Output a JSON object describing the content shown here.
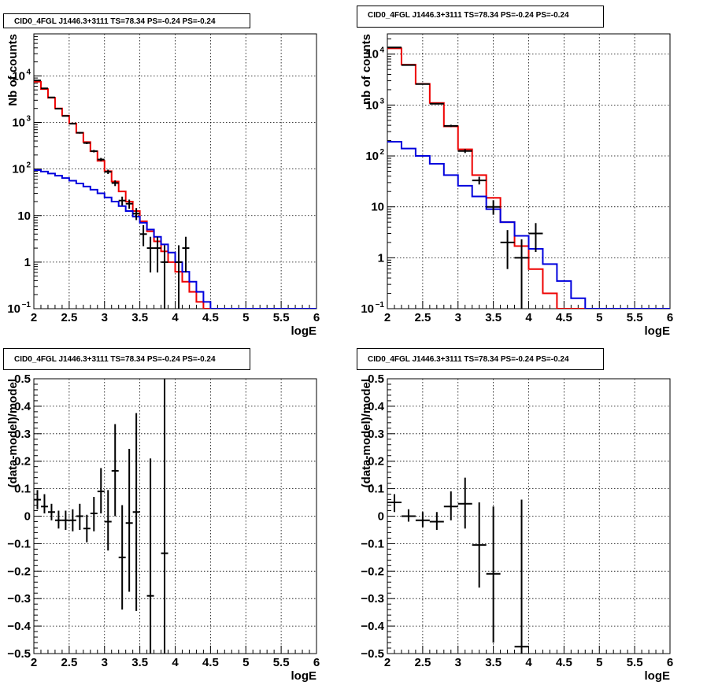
{
  "chart_data": [
    {
      "type": "line",
      "title": "CID0_4FGL J1446.3+3111 TS=78.34 PS=-0.24 PS=-0.24",
      "xlabel": "logE",
      "ylabel": "Nb of counts",
      "xlim": [
        2,
        6
      ],
      "ylim": [
        0.1,
        80000
      ],
      "yscale": "log",
      "grid": true,
      "xticks": [
        "2",
        "2.5",
        "3",
        "3.5",
        "4",
        "4.5",
        "5",
        "5.5",
        "6"
      ],
      "yticks": [
        {
          "v": 0.1,
          "label": "10",
          "sup": "−1"
        },
        {
          "v": 1,
          "label": "1",
          "sup": ""
        },
        {
          "v": 10,
          "label": "10",
          "sup": ""
        },
        {
          "v": 100,
          "label": "10",
          "sup": "2"
        },
        {
          "v": 1000,
          "label": "10",
          "sup": "3"
        },
        {
          "v": 10000,
          "label": "10",
          "sup": "4"
        }
      ],
      "bin_edges": [
        2.0,
        2.1,
        2.2,
        2.3,
        2.4,
        2.5,
        2.6,
        2.7,
        2.8,
        2.9,
        3.0,
        3.1,
        3.2,
        3.3,
        3.4,
        3.5,
        3.6,
        3.7,
        3.8,
        3.9,
        4.0,
        4.1,
        4.2,
        4.3,
        4.4,
        4.5,
        4.6,
        4.7,
        4.8,
        4.9,
        5.0,
        5.1,
        5.2,
        5.3,
        5.4,
        5.5,
        5.6,
        5.7,
        5.8,
        5.9,
        6.0
      ],
      "series": [
        {
          "color": "#ee0000",
          "step": true,
          "values": [
            7500,
            5200,
            3400,
            2000,
            1400,
            950,
            600,
            380,
            240,
            150,
            90,
            54,
            33,
            20,
            12.5,
            7.5,
            4.6,
            2.8,
            1.7,
            1.0,
            0.62,
            0.38,
            0.23,
            0.14,
            0.1,
            0.1,
            0.1,
            0.1,
            0.1,
            0.1,
            0.1,
            0.1,
            0.1,
            0.1,
            0.1,
            0.1,
            0.1,
            0.1,
            0.1,
            0.1
          ]
        },
        {
          "color": "#0000dd",
          "step": true,
          "values": [
            95,
            88,
            80,
            72,
            64,
            56,
            49,
            42,
            36,
            30,
            24.5,
            20,
            16,
            12.5,
            9.5,
            7.0,
            5.0,
            3.5,
            2.4,
            1.6,
            1.0,
            0.62,
            0.38,
            0.23,
            0.14,
            0.1,
            0.1,
            0.1,
            0.1,
            0.1,
            0.1,
            0.1,
            0.1,
            0.1,
            0.1,
            0.1,
            0.1,
            0.1,
            0.1,
            0.1
          ]
        }
      ],
      "points": [
        {
          "x": 2.05,
          "y": 8000,
          "xerr": 0.05,
          "lo": 7900,
          "hi": 8100
        },
        {
          "x": 2.15,
          "y": 5400,
          "xerr": 0.05,
          "lo": 5330,
          "hi": 5470
        },
        {
          "x": 2.25,
          "y": 3450,
          "xerr": 0.05,
          "lo": 3390,
          "hi": 3510
        },
        {
          "x": 2.35,
          "y": 1980,
          "xerr": 0.05,
          "lo": 1935,
          "hi": 2025
        },
        {
          "x": 2.45,
          "y": 1380,
          "xerr": 0.05,
          "lo": 1345,
          "hi": 1415
        },
        {
          "x": 2.55,
          "y": 940,
          "xerr": 0.05,
          "lo": 910,
          "hi": 970
        },
        {
          "x": 2.65,
          "y": 600,
          "xerr": 0.05,
          "lo": 576,
          "hi": 624
        },
        {
          "x": 2.75,
          "y": 362,
          "xerr": 0.05,
          "lo": 343,
          "hi": 381
        },
        {
          "x": 2.85,
          "y": 242,
          "xerr": 0.05,
          "lo": 227,
          "hi": 257
        },
        {
          "x": 2.95,
          "y": 160,
          "xerr": 0.05,
          "lo": 147,
          "hi": 173
        },
        {
          "x": 3.05,
          "y": 87,
          "xerr": 0.05,
          "lo": 78,
          "hi": 97
        },
        {
          "x": 3.15,
          "y": 50,
          "xerr": 0.05,
          "lo": 43,
          "hi": 57
        },
        {
          "x": 3.25,
          "y": 21,
          "xerr": 0.05,
          "lo": 16.5,
          "hi": 25.5
        },
        {
          "x": 3.35,
          "y": 18,
          "xerr": 0.05,
          "lo": 14,
          "hi": 22
        },
        {
          "x": 3.45,
          "y": 11,
          "xerr": 0.05,
          "lo": 8,
          "hi": 14.5
        },
        {
          "x": 3.55,
          "y": 4,
          "xerr": 0.05,
          "lo": 2.2,
          "hi": 6.2
        },
        {
          "x": 3.65,
          "y": 2,
          "xerr": 0.05,
          "lo": 0.6,
          "hi": 3.5
        },
        {
          "x": 3.75,
          "y": 2,
          "xerr": 0.05,
          "lo": 0.6,
          "hi": 3.5
        },
        {
          "x": 3.85,
          "y": 1,
          "xerr": 0.05,
          "lo": 0.1,
          "hi": 2.3
        },
        {
          "x": 4.05,
          "y": 1,
          "xerr": 0.05,
          "lo": 0.1,
          "hi": 2.3
        },
        {
          "x": 4.15,
          "y": 2,
          "xerr": 0.05,
          "lo": 0.6,
          "hi": 3.5
        }
      ]
    },
    {
      "type": "line",
      "title": "CID0_4FGL J1446.3+3111 TS=78.34 PS=-0.24 PS=-0.24",
      "xlabel": "logE",
      "ylabel": "nb of counts",
      "xlim": [
        2,
        6
      ],
      "ylim": [
        0.1,
        25000
      ],
      "yscale": "log",
      "grid": true,
      "xticks": [
        "2",
        "2.5",
        "3",
        "3.5",
        "4",
        "4.5",
        "5",
        "5.5",
        "6"
      ],
      "yticks": [
        {
          "v": 0.1,
          "label": "10",
          "sup": "−1"
        },
        {
          "v": 1,
          "label": "1",
          "sup": ""
        },
        {
          "v": 10,
          "label": "10",
          "sup": ""
        },
        {
          "v": 100,
          "label": "10",
          "sup": "2"
        },
        {
          "v": 1000,
          "label": "10",
          "sup": "3"
        },
        {
          "v": 10000,
          "label": "10",
          "sup": "4"
        }
      ],
      "bin_edges": [
        2.0,
        2.2,
        2.4,
        2.6,
        2.8,
        3.0,
        3.2,
        3.4,
        3.6,
        3.8,
        4.0,
        4.2,
        4.4,
        4.6,
        4.8,
        5.0,
        5.2,
        5.4,
        5.6,
        5.8,
        6.0
      ],
      "series": [
        {
          "color": "#ee0000",
          "step": true,
          "values": [
            13000,
            6200,
            2600,
            1100,
            380,
            135,
            42,
            15,
            5.0,
            1.7,
            0.6,
            0.2,
            0.1,
            0.1,
            0.1,
            0.1,
            0.1,
            0.1,
            0.1,
            0.1
          ]
        },
        {
          "color": "#0000dd",
          "step": true,
          "values": [
            190,
            140,
            100,
            70,
            42,
            26,
            16,
            9.0,
            5.0,
            2.7,
            1.5,
            0.75,
            0.35,
            0.16,
            0.1,
            0.1,
            0.1,
            0.1,
            0.1,
            0.1
          ]
        }
      ],
      "points": [
        {
          "x": 2.1,
          "y": 13500,
          "xerr": 0.1,
          "lo": 13380,
          "hi": 13620
        },
        {
          "x": 2.3,
          "y": 6100,
          "xerr": 0.1,
          "lo": 6020,
          "hi": 6180
        },
        {
          "x": 2.5,
          "y": 2580,
          "xerr": 0.1,
          "lo": 2530,
          "hi": 2630
        },
        {
          "x": 2.7,
          "y": 1060,
          "xerr": 0.1,
          "lo": 1028,
          "hi": 1092
        },
        {
          "x": 2.9,
          "y": 390,
          "xerr": 0.1,
          "lo": 370,
          "hi": 410
        },
        {
          "x": 3.1,
          "y": 125,
          "xerr": 0.1,
          "lo": 114,
          "hi": 136
        },
        {
          "x": 3.3,
          "y": 33,
          "xerr": 0.1,
          "lo": 27.5,
          "hi": 39
        },
        {
          "x": 3.5,
          "y": 10,
          "xerr": 0.1,
          "lo": 7,
          "hi": 13.5
        },
        {
          "x": 3.7,
          "y": 2,
          "xerr": 0.1,
          "lo": 0.6,
          "hi": 3.5
        },
        {
          "x": 3.9,
          "y": 1,
          "xerr": 0.1,
          "lo": 0.1,
          "hi": 2.3
        },
        {
          "x": 4.1,
          "y": 3,
          "xerr": 0.1,
          "lo": 1.3,
          "hi": 4.8
        }
      ]
    },
    {
      "type": "scatter",
      "title": "CID0_4FGL J1446.3+3111 TS=78.34 PS=-0.24 PS=-0.24",
      "xlabel": "logE",
      "ylabel": "(data-model)/model",
      "xlim": [
        2,
        6
      ],
      "ylim": [
        -0.5,
        0.5
      ],
      "yscale": "linear",
      "grid": true,
      "xticks": [
        "2",
        "2.5",
        "3",
        "3.5",
        "4",
        "4.5",
        "5",
        "5.5",
        "6"
      ],
      "yticks": [
        {
          "v": -0.5,
          "label": "−0.5",
          "sup": ""
        },
        {
          "v": -0.4,
          "label": "−0.4",
          "sup": ""
        },
        {
          "v": -0.3,
          "label": "−0.3",
          "sup": ""
        },
        {
          "v": -0.2,
          "label": "−0.2",
          "sup": ""
        },
        {
          "v": -0.1,
          "label": "−0.1",
          "sup": ""
        },
        {
          "v": 0,
          "label": "0",
          "sup": ""
        },
        {
          "v": 0.1,
          "label": "0.1",
          "sup": ""
        },
        {
          "v": 0.2,
          "label": "0.2",
          "sup": ""
        },
        {
          "v": 0.3,
          "label": "0.3",
          "sup": ""
        },
        {
          "v": 0.4,
          "label": "0.4",
          "sup": ""
        },
        {
          "v": 0.5,
          "label": "0.5",
          "sup": ""
        }
      ],
      "points": [
        {
          "x": 2.05,
          "y": 0.06,
          "xerr": 0.05,
          "lo": 0.025,
          "hi": 0.095
        },
        {
          "x": 2.15,
          "y": 0.035,
          "xerr": 0.05,
          "lo": 0.01,
          "hi": 0.08
        },
        {
          "x": 2.25,
          "y": 0.015,
          "xerr": 0.05,
          "lo": -0.015,
          "hi": 0.045
        },
        {
          "x": 2.35,
          "y": -0.015,
          "xerr": 0.05,
          "lo": -0.045,
          "hi": 0.02
        },
        {
          "x": 2.45,
          "y": -0.015,
          "xerr": 0.05,
          "lo": -0.05,
          "hi": 0.02
        },
        {
          "x": 2.55,
          "y": -0.015,
          "xerr": 0.05,
          "lo": -0.055,
          "hi": 0.025
        },
        {
          "x": 2.65,
          "y": 0.0,
          "xerr": 0.05,
          "lo": -0.05,
          "hi": 0.045
        },
        {
          "x": 2.75,
          "y": -0.045,
          "xerr": 0.05,
          "lo": -0.095,
          "hi": 0.005
        },
        {
          "x": 2.85,
          "y": 0.01,
          "xerr": 0.05,
          "lo": -0.055,
          "hi": 0.07
        },
        {
          "x": 2.95,
          "y": 0.09,
          "xerr": 0.05,
          "lo": 0.01,
          "hi": 0.175
        },
        {
          "x": 3.05,
          "y": -0.02,
          "xerr": 0.05,
          "lo": -0.125,
          "hi": 0.095
        },
        {
          "x": 3.15,
          "y": 0.165,
          "xerr": 0.05,
          "lo": 0.0,
          "hi": 0.335
        },
        {
          "x": 3.25,
          "y": -0.15,
          "xerr": 0.05,
          "lo": -0.34,
          "hi": 0.04
        },
        {
          "x": 3.35,
          "y": -0.025,
          "xerr": 0.05,
          "lo": -0.275,
          "hi": 0.245
        },
        {
          "x": 3.45,
          "y": 0.015,
          "xerr": 0.05,
          "lo": -0.345,
          "hi": 0.375
        },
        {
          "x": 3.65,
          "y": -0.29,
          "xerr": 0.05,
          "lo": -0.5,
          "hi": 0.21
        },
        {
          "x": 3.85,
          "y": -0.135,
          "xerr": 0.05,
          "lo": -0.5,
          "hi": 0.5
        }
      ]
    },
    {
      "type": "scatter",
      "title": "CID0_4FGL J1446.3+3111 TS=78.34 PS=-0.24 PS=-0.24",
      "xlabel": "logE",
      "ylabel": "(data-model)/model",
      "xlim": [
        2,
        6
      ],
      "ylim": [
        -0.5,
        0.5
      ],
      "yscale": "linear",
      "grid": true,
      "xticks": [
        "2",
        "2.5",
        "3",
        "3.5",
        "4",
        "4.5",
        "5",
        "5.5",
        "6"
      ],
      "yticks": [
        {
          "v": -0.5,
          "label": "−0.5",
          "sup": ""
        },
        {
          "v": -0.4,
          "label": "−0.4",
          "sup": ""
        },
        {
          "v": -0.3,
          "label": "−0.3",
          "sup": ""
        },
        {
          "v": -0.2,
          "label": "−0.2",
          "sup": ""
        },
        {
          "v": -0.1,
          "label": "−0.1",
          "sup": ""
        },
        {
          "v": 0,
          "label": "0",
          "sup": ""
        },
        {
          "v": 0.1,
          "label": "0.1",
          "sup": ""
        },
        {
          "v": 0.2,
          "label": "0.2",
          "sup": ""
        },
        {
          "v": 0.3,
          "label": "0.3",
          "sup": ""
        },
        {
          "v": 0.4,
          "label": "0.4",
          "sup": ""
        },
        {
          "v": 0.5,
          "label": "0.5",
          "sup": ""
        }
      ],
      "points": [
        {
          "x": 2.1,
          "y": 0.05,
          "xerr": 0.1,
          "lo": 0.015,
          "hi": 0.08
        },
        {
          "x": 2.3,
          "y": 0.0,
          "xerr": 0.1,
          "lo": -0.02,
          "hi": 0.025
        },
        {
          "x": 2.5,
          "y": -0.015,
          "xerr": 0.1,
          "lo": -0.04,
          "hi": 0.015
        },
        {
          "x": 2.7,
          "y": -0.02,
          "xerr": 0.1,
          "lo": -0.05,
          "hi": 0.015
        },
        {
          "x": 2.9,
          "y": 0.035,
          "xerr": 0.1,
          "lo": -0.015,
          "hi": 0.09
        },
        {
          "x": 3.1,
          "y": 0.045,
          "xerr": 0.1,
          "lo": -0.045,
          "hi": 0.14
        },
        {
          "x": 3.3,
          "y": -0.105,
          "xerr": 0.1,
          "lo": -0.26,
          "hi": 0.05
        },
        {
          "x": 3.5,
          "y": -0.21,
          "xerr": 0.1,
          "lo": -0.46,
          "hi": 0.035
        },
        {
          "x": 3.9,
          "y": -0.475,
          "xerr": 0.1,
          "lo": -0.5,
          "hi": 0.06
        }
      ]
    }
  ]
}
